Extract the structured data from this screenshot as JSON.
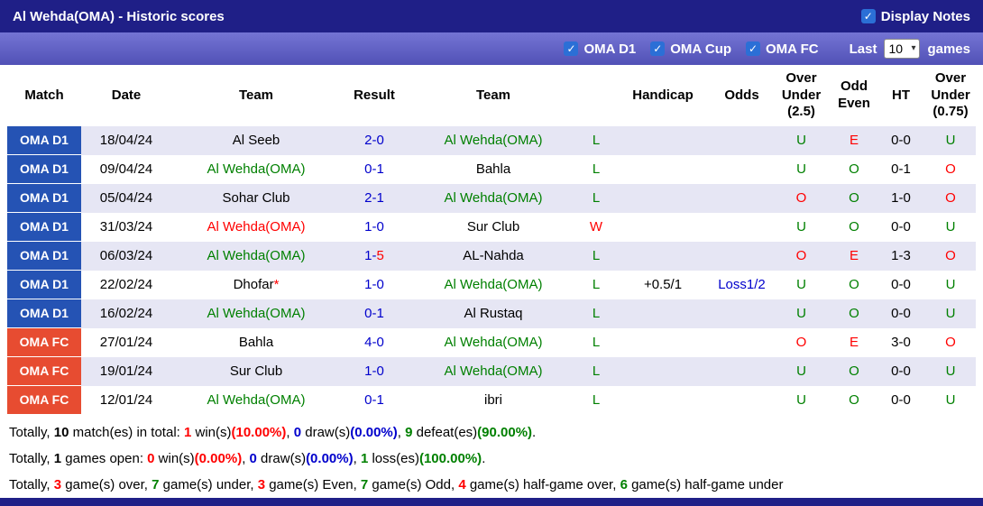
{
  "icons": {
    "checkbox_check": "✓",
    "select_caret": "▾"
  },
  "colors": {
    "navy": "#1f1f87",
    "bar_top": "#7474d4",
    "bar_bottom": "#5151b6",
    "league_blue": "#2553b4",
    "league_red": "#e74c31",
    "row_alt": "#e6e6f4",
    "green": "#008000",
    "red": "#ff0000",
    "blue": "#0000cc",
    "checkbox_blue": "#2b6fd6"
  },
  "title_bar": {
    "title": "Al Wehda(OMA) - Historic scores",
    "display_notes_label": "Display Notes",
    "display_notes_checked": true
  },
  "filter_bar": {
    "leagues": [
      {
        "label": "OMA D1",
        "checked": true
      },
      {
        "label": "OMA Cup",
        "checked": true
      },
      {
        "label": "OMA FC",
        "checked": true
      }
    ],
    "last_label": "Last",
    "last_games_value": "10",
    "games_label": "games"
  },
  "table": {
    "headers": [
      "Match",
      "Date",
      "Team",
      "Result",
      "Team",
      "",
      "Handicap",
      "Odds",
      "Over Under (2.5)",
      "Odd Even",
      "HT",
      "Over Under (0.75)"
    ],
    "rows": [
      {
        "league": "OMA D1",
        "league_color": "blue",
        "date": [
          {
            "t": "18/04/24"
          }
        ],
        "team1": [
          {
            "t": "Al Seeb"
          }
        ],
        "result": [
          {
            "t": "2-0",
            "c": "blue"
          }
        ],
        "team2": [
          {
            "t": "Al Wehda(OMA)",
            "c": "green"
          }
        ],
        "wl": [
          {
            "t": "L",
            "c": "green"
          }
        ],
        "handicap": [],
        "odds": [],
        "over_under_25": [
          {
            "t": "U",
            "c": "green"
          }
        ],
        "odd_even": [
          {
            "t": "E",
            "c": "red"
          }
        ],
        "ht": [
          {
            "t": "0-0"
          }
        ],
        "over_under_075": [
          {
            "t": "U",
            "c": "green"
          }
        ]
      },
      {
        "league": "OMA D1",
        "league_color": "blue",
        "date": [
          {
            "t": "09/04/24"
          }
        ],
        "team1": [
          {
            "t": "Al Wehda(OMA)",
            "c": "green"
          }
        ],
        "result": [
          {
            "t": "0-1",
            "c": "blue"
          }
        ],
        "team2": [
          {
            "t": "Bahla"
          }
        ],
        "wl": [
          {
            "t": "L",
            "c": "green"
          }
        ],
        "handicap": [],
        "odds": [],
        "over_under_25": [
          {
            "t": "U",
            "c": "green"
          }
        ],
        "odd_even": [
          {
            "t": "O",
            "c": "green"
          }
        ],
        "ht": [
          {
            "t": "0-1"
          }
        ],
        "over_under_075": [
          {
            "t": "O",
            "c": "red"
          }
        ]
      },
      {
        "league": "OMA D1",
        "league_color": "blue",
        "date": [
          {
            "t": "05/04/24"
          }
        ],
        "team1": [
          {
            "t": "Sohar Club"
          }
        ],
        "result": [
          {
            "t": "2-1",
            "c": "blue"
          }
        ],
        "team2": [
          {
            "t": "Al Wehda(OMA)",
            "c": "green"
          }
        ],
        "wl": [
          {
            "t": "L",
            "c": "green"
          }
        ],
        "handicap": [],
        "odds": [],
        "over_under_25": [
          {
            "t": "O",
            "c": "red"
          }
        ],
        "odd_even": [
          {
            "t": "O",
            "c": "green"
          }
        ],
        "ht": [
          {
            "t": "1-0"
          }
        ],
        "over_under_075": [
          {
            "t": "O",
            "c": "red"
          }
        ]
      },
      {
        "league": "OMA D1",
        "league_color": "blue",
        "date": [
          {
            "t": "31/03/24"
          }
        ],
        "team1": [
          {
            "t": "Al Wehda(OMA)",
            "c": "red"
          }
        ],
        "result": [
          {
            "t": "1-0",
            "c": "blue"
          }
        ],
        "team2": [
          {
            "t": "Sur Club"
          }
        ],
        "wl": [
          {
            "t": "W",
            "c": "red"
          }
        ],
        "handicap": [],
        "odds": [],
        "over_under_25": [
          {
            "t": "U",
            "c": "green"
          }
        ],
        "odd_even": [
          {
            "t": "O",
            "c": "green"
          }
        ],
        "ht": [
          {
            "t": "0-0"
          }
        ],
        "over_under_075": [
          {
            "t": "U",
            "c": "green"
          }
        ]
      },
      {
        "league": "OMA D1",
        "league_color": "blue",
        "date": [
          {
            "t": "06/03/24"
          }
        ],
        "team1": [
          {
            "t": "Al Wehda(OMA)",
            "c": "green"
          }
        ],
        "result": [
          {
            "t": "1-",
            "c": "blue"
          },
          {
            "t": "5",
            "c": "red"
          }
        ],
        "team2": [
          {
            "t": "AL-Nahda"
          }
        ],
        "wl": [
          {
            "t": "L",
            "c": "green"
          }
        ],
        "handicap": [],
        "odds": [],
        "over_under_25": [
          {
            "t": "O",
            "c": "red"
          }
        ],
        "odd_even": [
          {
            "t": "E",
            "c": "red"
          }
        ],
        "ht": [
          {
            "t": "1-3"
          }
        ],
        "over_under_075": [
          {
            "t": "O",
            "c": "red"
          }
        ]
      },
      {
        "league": "OMA D1",
        "league_color": "blue",
        "date": [
          {
            "t": "22/02/24"
          }
        ],
        "team1": [
          {
            "t": "Dhofar"
          },
          {
            "t": "*",
            "c": "red"
          }
        ],
        "result": [
          {
            "t": "1-0",
            "c": "blue"
          }
        ],
        "team2": [
          {
            "t": "Al Wehda(OMA)",
            "c": "green"
          }
        ],
        "wl": [
          {
            "t": "L",
            "c": "green"
          }
        ],
        "handicap": [
          {
            "t": "+0.5/1"
          }
        ],
        "odds": [
          {
            "t": "Loss1/2",
            "c": "blue"
          }
        ],
        "over_under_25": [
          {
            "t": "U",
            "c": "green"
          }
        ],
        "odd_even": [
          {
            "t": "O",
            "c": "green"
          }
        ],
        "ht": [
          {
            "t": "0-0"
          }
        ],
        "over_under_075": [
          {
            "t": "U",
            "c": "green"
          }
        ]
      },
      {
        "league": "OMA D1",
        "league_color": "blue",
        "date": [
          {
            "t": "16/02/24"
          }
        ],
        "team1": [
          {
            "t": "Al Wehda(OMA)",
            "c": "green"
          }
        ],
        "result": [
          {
            "t": "0-1",
            "c": "blue"
          }
        ],
        "team2": [
          {
            "t": "Al Rustaq"
          }
        ],
        "wl": [
          {
            "t": "L",
            "c": "green"
          }
        ],
        "handicap": [],
        "odds": [],
        "over_under_25": [
          {
            "t": "U",
            "c": "green"
          }
        ],
        "odd_even": [
          {
            "t": "O",
            "c": "green"
          }
        ],
        "ht": [
          {
            "t": "0-0"
          }
        ],
        "over_under_075": [
          {
            "t": "U",
            "c": "green"
          }
        ]
      },
      {
        "league": "OMA FC",
        "league_color": "red",
        "date": [
          {
            "t": "27/01/24"
          }
        ],
        "team1": [
          {
            "t": "Bahla"
          }
        ],
        "result": [
          {
            "t": "4-0",
            "c": "blue"
          }
        ],
        "team2": [
          {
            "t": "Al Wehda(OMA)",
            "c": "green"
          }
        ],
        "wl": [
          {
            "t": "L",
            "c": "green"
          }
        ],
        "handicap": [],
        "odds": [],
        "over_under_25": [
          {
            "t": "O",
            "c": "red"
          }
        ],
        "odd_even": [
          {
            "t": "E",
            "c": "red"
          }
        ],
        "ht": [
          {
            "t": "3-0"
          }
        ],
        "over_under_075": [
          {
            "t": "O",
            "c": "red"
          }
        ]
      },
      {
        "league": "OMA FC",
        "league_color": "red",
        "date": [
          {
            "t": "19/01/24"
          }
        ],
        "team1": [
          {
            "t": "Sur Club"
          }
        ],
        "result": [
          {
            "t": "1-0",
            "c": "blue"
          }
        ],
        "team2": [
          {
            "t": "Al Wehda(OMA)",
            "c": "green"
          }
        ],
        "wl": [
          {
            "t": "L",
            "c": "green"
          }
        ],
        "handicap": [],
        "odds": [],
        "over_under_25": [
          {
            "t": "U",
            "c": "green"
          }
        ],
        "odd_even": [
          {
            "t": "O",
            "c": "green"
          }
        ],
        "ht": [
          {
            "t": "0-0"
          }
        ],
        "over_under_075": [
          {
            "t": "U",
            "c": "green"
          }
        ]
      },
      {
        "league": "OMA FC",
        "league_color": "red",
        "date": [
          {
            "t": "12/01/24"
          }
        ],
        "team1": [
          {
            "t": "Al Wehda(OMA)",
            "c": "green"
          }
        ],
        "result": [
          {
            "t": "0-1",
            "c": "blue"
          }
        ],
        "team2": [
          {
            "t": "ibri"
          }
        ],
        "wl": [
          {
            "t": "L",
            "c": "green"
          }
        ],
        "handicap": [],
        "odds": [],
        "over_under_25": [
          {
            "t": "U",
            "c": "green"
          }
        ],
        "odd_even": [
          {
            "t": "O",
            "c": "green"
          }
        ],
        "ht": [
          {
            "t": "0-0"
          }
        ],
        "over_under_075": [
          {
            "t": "U",
            "c": "green"
          }
        ]
      }
    ]
  },
  "summary": {
    "lines": [
      [
        {
          "t": "Totally, "
        },
        {
          "t": "10",
          "b": true
        },
        {
          "t": " match(es) in total: "
        },
        {
          "t": "1",
          "c": "red",
          "b": true
        },
        {
          "t": " win(s)"
        },
        {
          "t": "(10.00%)",
          "c": "red",
          "b": true
        },
        {
          "t": ", "
        },
        {
          "t": "0",
          "c": "blue",
          "b": true
        },
        {
          "t": " draw(s)"
        },
        {
          "t": "(0.00%)",
          "c": "blue",
          "b": true
        },
        {
          "t": ", "
        },
        {
          "t": "9",
          "c": "green",
          "b": true
        },
        {
          "t": " defeat(es)"
        },
        {
          "t": "(90.00%)",
          "c": "green",
          "b": true
        },
        {
          "t": "."
        }
      ],
      [
        {
          "t": "Totally, "
        },
        {
          "t": "1",
          "b": true
        },
        {
          "t": " games open: "
        },
        {
          "t": "0",
          "c": "red",
          "b": true
        },
        {
          "t": " win(s)"
        },
        {
          "t": "(0.00%)",
          "c": "red",
          "b": true
        },
        {
          "t": ", "
        },
        {
          "t": "0",
          "c": "blue",
          "b": true
        },
        {
          "t": " draw(s)"
        },
        {
          "t": "(0.00%)",
          "c": "blue",
          "b": true
        },
        {
          "t": ", "
        },
        {
          "t": "1",
          "c": "green",
          "b": true
        },
        {
          "t": " loss(es)"
        },
        {
          "t": "(100.00%)",
          "c": "green",
          "b": true
        },
        {
          "t": "."
        }
      ],
      [
        {
          "t": "Totally, "
        },
        {
          "t": "3",
          "c": "red",
          "b": true
        },
        {
          "t": " game(s) over, "
        },
        {
          "t": "7",
          "c": "green",
          "b": true
        },
        {
          "t": " game(s) under, "
        },
        {
          "t": "3",
          "c": "red",
          "b": true
        },
        {
          "t": " game(s) Even, "
        },
        {
          "t": "7",
          "c": "green",
          "b": true
        },
        {
          "t": " game(s) Odd, "
        },
        {
          "t": "4",
          "c": "red",
          "b": true
        },
        {
          "t": " game(s) half-game over, "
        },
        {
          "t": "6",
          "c": "green",
          "b": true
        },
        {
          "t": " game(s) half-game under"
        }
      ]
    ]
  }
}
